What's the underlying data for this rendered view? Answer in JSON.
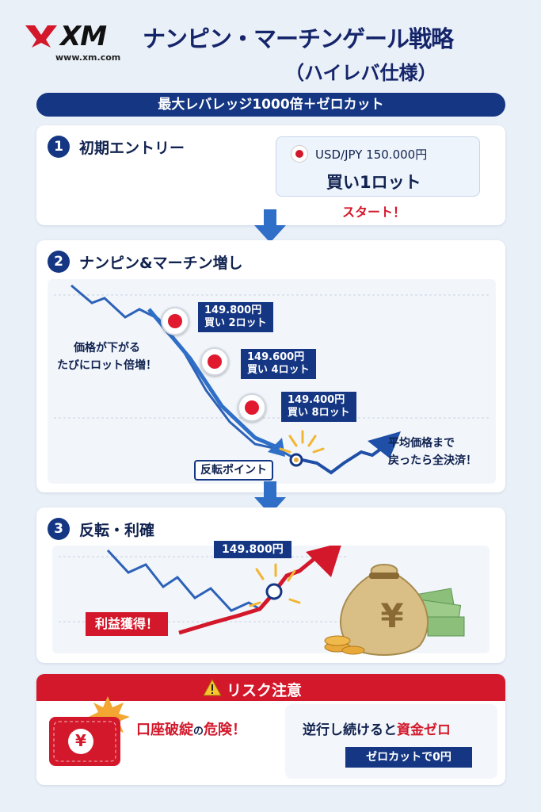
{
  "brand": {
    "logo": "XM",
    "url": "www.xm.com"
  },
  "header": {
    "title": "ナンピン・マーチンゲール戦略",
    "subtitle": "（ハイレバ仕様）"
  },
  "banner": "最大レバレッジ1000倍＋ゼロカット",
  "step1": {
    "num": "1",
    "title": "初期エントリー",
    "pair": "USD/JPY 150.000円",
    "order": "買い1ロット",
    "start": "スタート！"
  },
  "step2": {
    "num": "2",
    "title": "ナンピン&マーチン増し",
    "note": [
      "価格が下がる",
      "たびにロット倍増！"
    ],
    "entries": [
      {
        "price": "149.800円",
        "lot": "買い 2ロット"
      },
      {
        "price": "149.600円",
        "lot": "買い 4ロット"
      },
      {
        "price": "149.400円",
        "lot": "買い 8ロット"
      }
    ],
    "reversal": "反転ポイント",
    "exit_note": [
      "平均価格まで",
      "戻ったら全決済！"
    ]
  },
  "step3": {
    "num": "3",
    "title": "反転・利確",
    "price": "149.800円",
    "profit": "利益獲得！",
    "bag_symbol": "¥"
  },
  "risk": {
    "title": "リスク注意",
    "warning_icon": "warning-icon",
    "left_text_a": "口座破綻",
    "left_text_b": "の",
    "left_text_c": "危険！",
    "right_text_a": "逆行し続けると",
    "right_text_b": "資金ゼロ",
    "zero_cut": "ゼロカットで0円",
    "wallet_symbol": "¥"
  },
  "colors": {
    "navy": "#143683",
    "red": "#d3182b",
    "blue_arrow": "#2f6fc8",
    "gold": "#e8a93a"
  }
}
